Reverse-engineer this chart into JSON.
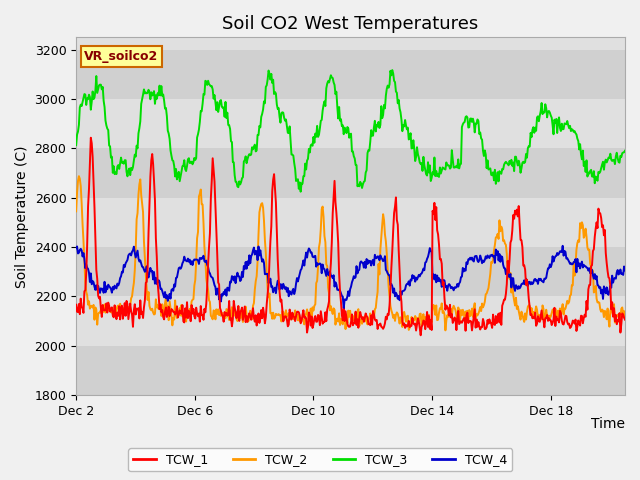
{
  "title": "Soil CO2 West Temperatures",
  "xlabel": "Time",
  "ylabel": "Soil Temperature (C)",
  "label_box_text": "VR_soilco2",
  "ylim": [
    1800,
    3250
  ],
  "xlim_days": [
    0,
    18.5
  ],
  "xtick_positions": [
    0,
    4,
    8,
    12,
    16
  ],
  "xtick_labels": [
    "Dec 2",
    "Dec 6",
    "Dec 10",
    "Dec 14",
    "Dec 18"
  ],
  "ytick_positions": [
    1800,
    2000,
    2200,
    2400,
    2600,
    2800,
    3000,
    3200
  ],
  "series_colors": [
    "#ff0000",
    "#ff9900",
    "#00dd00",
    "#0000cc"
  ],
  "series_names": [
    "TCW_1",
    "TCW_2",
    "TCW_3",
    "TCW_4"
  ],
  "fig_bg_color": "#f0f0f0",
  "band_colors_odd": "#d0d0d0",
  "band_colors_even": "#e0e0e0",
  "title_fontsize": 13,
  "axis_fontsize": 10,
  "tick_fontsize": 9,
  "line_width": 1.4
}
